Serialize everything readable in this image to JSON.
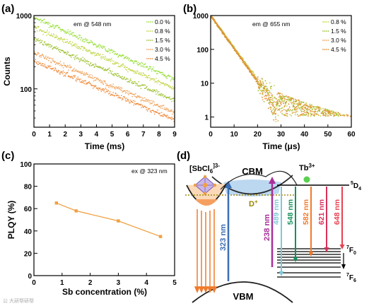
{
  "watermark": "公 大研帮研帮",
  "chart_data": [
    {
      "panel": "(a)",
      "type": "scatter",
      "annotation": "em @ 548 nm",
      "xlabel": "Time (ms)",
      "ylabel": "Counts",
      "xlim": [
        0,
        9
      ],
      "ylim": [
        30,
        1000
      ],
      "yscale": "log",
      "xticks": [
        "0",
        "1",
        "2",
        "3",
        "4",
        "5",
        "6",
        "7",
        "8",
        "9"
      ],
      "yticks": [
        {
          "v": 1000,
          "label": "1000"
        },
        {
          "v": 100,
          "label": "100"
        }
      ],
      "legend_position": "top-right",
      "series": [
        {
          "name": "0.0 %",
          "color": "#99e03a",
          "x": [
            0,
            9
          ],
          "y": [
            950,
            135
          ]
        },
        {
          "name": "0.8 %",
          "color": "#c4d64a",
          "x": [
            0,
            9
          ],
          "y": [
            700,
            100
          ]
        },
        {
          "name": "1.5 %",
          "color": "#9ec232",
          "x": [
            0,
            9
          ],
          "y": [
            480,
            70
          ]
        },
        {
          "name": "3.0 %",
          "color": "#f0a25a",
          "x": [
            0,
            9
          ],
          "y": [
            310,
            48
          ]
        },
        {
          "name": "4.5 %",
          "color": "#f08a3a",
          "x": [
            0,
            9
          ],
          "y": [
            240,
            38
          ]
        }
      ]
    },
    {
      "panel": "(b)",
      "type": "scatter",
      "annotation": "em @ 655 nm",
      "xlabel": "Time (μs)",
      "ylabel": "",
      "xlim": [
        0,
        60
      ],
      "ylim": [
        0.5,
        1000
      ],
      "yscale": "log",
      "xticks": [
        "0",
        "10",
        "20",
        "30",
        "40",
        "50",
        "60"
      ],
      "yticks": [
        {
          "v": 1000,
          "label": "1000"
        },
        {
          "v": 100,
          "label": "100"
        },
        {
          "v": 10,
          "label": "10"
        },
        {
          "v": 1,
          "label": "1"
        }
      ],
      "legend_position": "top-right",
      "series": [
        {
          "name": "0.8 %",
          "color": "#c4d64a",
          "decay_tau": 4.6
        },
        {
          "name": "1.5 %",
          "color": "#9ec232",
          "decay_tau": 4.5
        },
        {
          "name": "3.0 %",
          "color": "#f0a25a",
          "decay_tau": 4.5
        },
        {
          "name": "4.5 %",
          "color": "#d9902a",
          "decay_tau": 4.4
        }
      ]
    },
    {
      "panel": "(c)",
      "type": "line",
      "annotation": "ex @ 323 nm",
      "xlabel": "Sb concentration (%)",
      "ylabel": "PLQY (%)",
      "xlim": [
        0,
        5
      ],
      "ylim": [
        0,
        100
      ],
      "xticks": [
        "0",
        "1",
        "2",
        "3",
        "4",
        "5"
      ],
      "yticks": [
        "0",
        "20",
        "40",
        "60",
        "80",
        "100"
      ],
      "series": [
        {
          "name": "PLQY",
          "color": "#f0a040",
          "x": [
            0.8,
            1.5,
            3.0,
            4.5
          ],
          "y": [
            65,
            58,
            49,
            35
          ]
        }
      ]
    }
  ],
  "diagram": {
    "panel": "(d)",
    "labels": {
      "complex_main": "[SbCl",
      "complex_sub": "6",
      "complex_sup": "]3-",
      "cbm": "CBM",
      "vbm": "VBM",
      "donor": "D",
      "donor_sup": "+",
      "tb_main": "Tb",
      "tb_sup": "3+",
      "d4_sup": "5",
      "d4_main": "D",
      "d4_sub": "4",
      "f0_sup": "7",
      "f0_main": "F",
      "f0_sub": "0",
      "f6_sup": "7",
      "f6_main": "F",
      "f6_sub": "6"
    },
    "transitions": [
      {
        "label": "323 nm",
        "color": "#3b6fb5"
      },
      {
        "label": "238 nm",
        "color": "#a8309a"
      },
      {
        "label": "489 nm",
        "color": "#7fc8d8"
      },
      {
        "label": "548 nm",
        "color": "#14905a"
      },
      {
        "label": "582 nm",
        "color": "#f07a2a"
      },
      {
        "label": "621 nm",
        "color": "#d8305a"
      },
      {
        "label": "648 nm",
        "color": "#e84050"
      }
    ]
  }
}
